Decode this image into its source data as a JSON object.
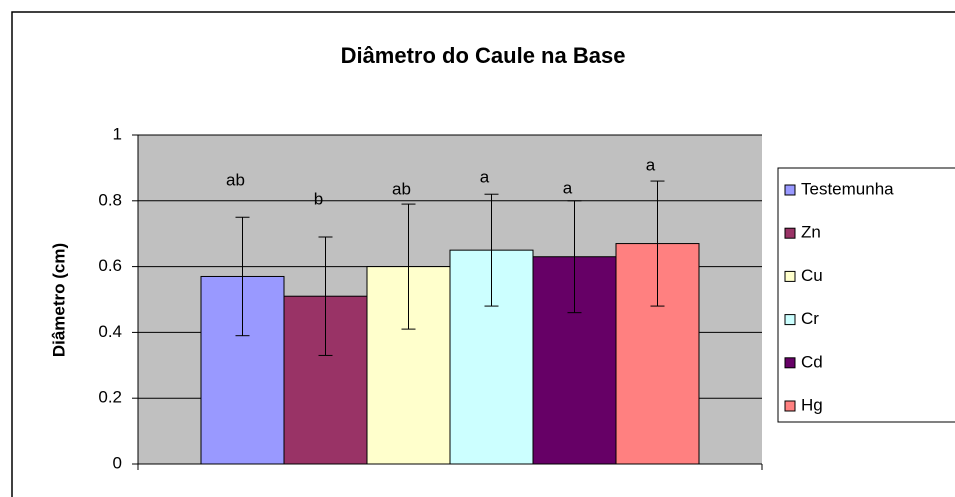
{
  "chart_data": {
    "type": "bar",
    "title": "Diâmetro do Caule na Base",
    "y_label": "Diâmetro (cm)",
    "categories": [
      null
    ],
    "series": [
      {
        "name": "Testemunha",
        "color": "#9999ff",
        "values": [
          0.57
        ],
        "errors": [
          0.18
        ],
        "annotation": "ab"
      },
      {
        "name": "Zn",
        "color": "#993366",
        "values": [
          0.51
        ],
        "errors": [
          0.18
        ],
        "annotation": "b"
      },
      {
        "name": "Cu",
        "color": "#ffffcc",
        "values": [
          0.6
        ],
        "errors": [
          0.19
        ],
        "annotation": "ab"
      },
      {
        "name": "Cr",
        "color": "#ccffff",
        "values": [
          0.65
        ],
        "errors": [
          0.17
        ],
        "annotation": "a"
      },
      {
        "name": "Cd",
        "color": "#660066",
        "values": [
          0.63
        ],
        "errors": [
          0.17
        ],
        "annotation": "a"
      },
      {
        "name": "Hg",
        "color": "#ff8080",
        "values": [
          0.67
        ],
        "errors": [
          0.19
        ],
        "annotation": "a"
      }
    ],
    "ylim": [
      0,
      1
    ],
    "yticks": [
      0,
      0.2,
      0.4,
      0.6,
      0.8,
      1
    ],
    "grid": true,
    "legend": "right"
  }
}
